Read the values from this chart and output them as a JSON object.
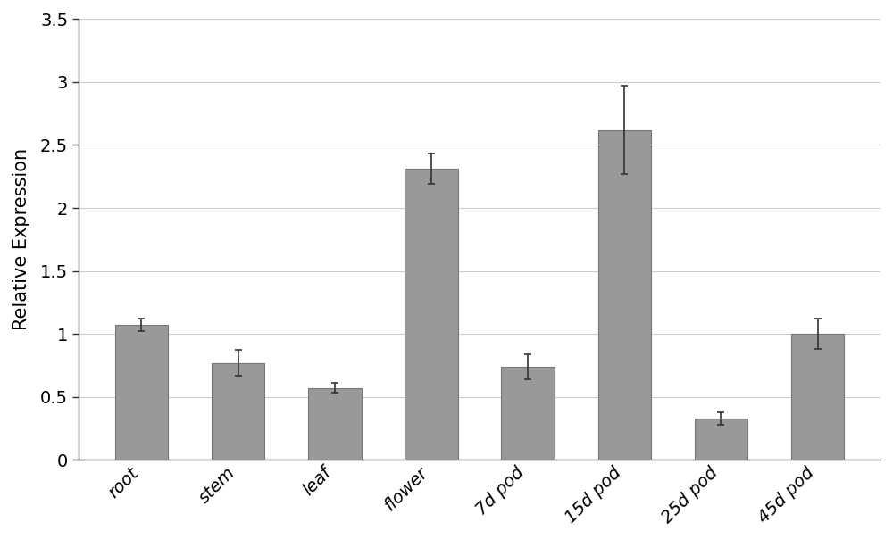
{
  "categories": [
    "root",
    "stem",
    "leaf",
    "flower",
    "7d pod",
    "15d pod",
    "25d pod",
    "45d pod"
  ],
  "values": [
    1.07,
    0.77,
    0.57,
    2.31,
    0.74,
    2.62,
    0.33,
    1.0
  ],
  "errors": [
    0.05,
    0.1,
    0.04,
    0.12,
    0.1,
    0.35,
    0.05,
    0.12
  ],
  "bar_color": "#999999",
  "bar_edgecolor": "#777777",
  "bar_width": 0.55,
  "ylim": [
    0,
    3.5
  ],
  "yticks": [
    0,
    0.5,
    1.0,
    1.5,
    2.0,
    2.5,
    3.0,
    3.5
  ],
  "ylabel": "Relative Expression",
  "ylabel_fontsize": 15,
  "tick_fontsize": 14,
  "xlabel_fontsize": 14,
  "background_color": "#ffffff",
  "grid_color": "#cccccc",
  "error_capsize": 3,
  "error_linewidth": 1.2,
  "error_color": "#333333",
  "xlabel_rotation": 45,
  "xlabel_style": "italic"
}
